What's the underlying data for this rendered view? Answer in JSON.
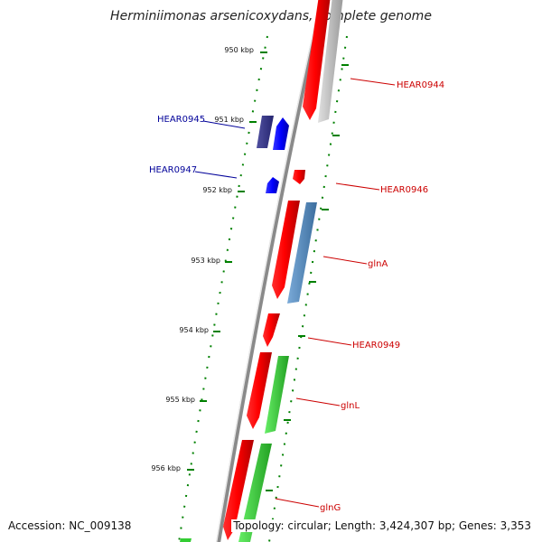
{
  "title": "Herminiimonas arsenicoxydans, complete genome",
  "footer": {
    "accession": "Accession: NC_009138",
    "topology": "Topology: circular; Length: 3,424,307 bp; Genes: 3,353"
  },
  "ticks": [
    "950 kbp",
    "951 kbp",
    "952 kbp",
    "953 kbp",
    "954 kbp",
    "955 kbp",
    "956 kbp"
  ],
  "genes": [
    {
      "name": "HEAR0944",
      "color": "#cc0000"
    },
    {
      "name": "HEAR0945",
      "color": "#000099"
    },
    {
      "name": "HEAR0946",
      "color": "#cc0000"
    },
    {
      "name": "HEAR0947",
      "color": "#000099"
    },
    {
      "name": "glnA",
      "color": "#cc0000"
    },
    {
      "name": "HEAR0949",
      "color": "#cc0000"
    },
    {
      "name": "glnL",
      "color": "#cc0000"
    },
    {
      "name": "glnG",
      "color": "#cc0000"
    }
  ],
  "colors": {
    "backbone": "#9a9a9a",
    "forward_gene": "#ff0000",
    "reverse_gene": "#0000ff",
    "gc_track": "#009900",
    "cog_navy": "#3b3b8a",
    "cog_steel": "#5b8fbf",
    "cog_gray": "#bfbfbf",
    "cog_green": "#33cc33"
  }
}
